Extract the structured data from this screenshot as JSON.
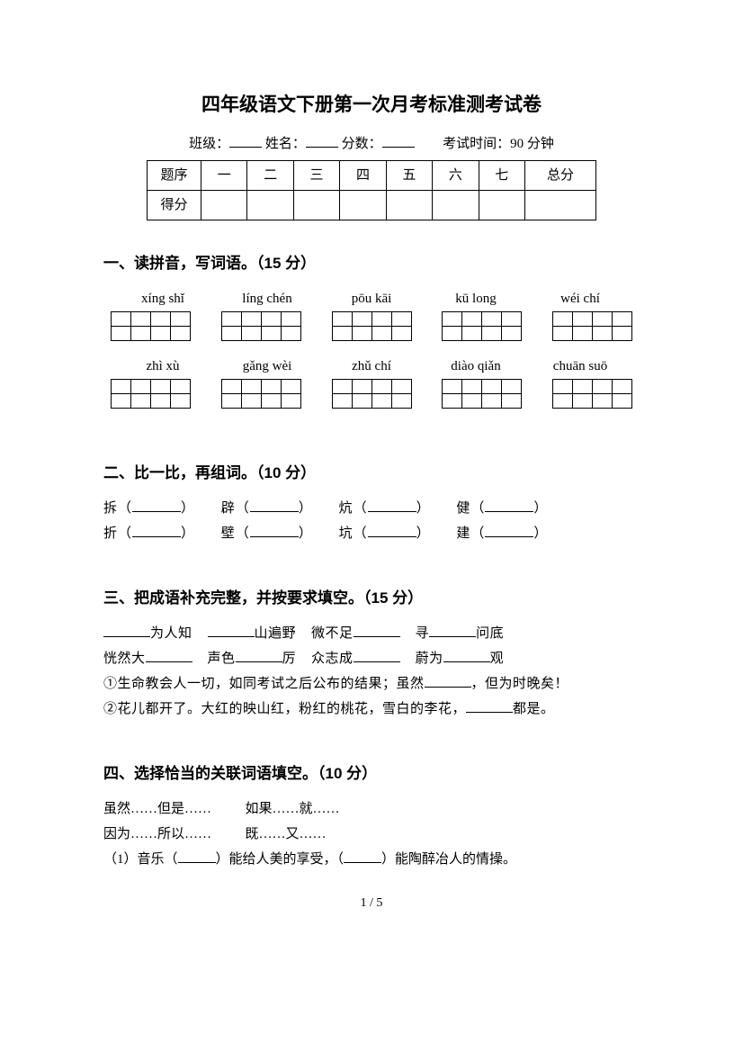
{
  "title": "四年级语文下册第一次月考标准测考试卷",
  "meta": {
    "class_label": "班级：",
    "name_label": "姓名：",
    "score_label": "分数：",
    "time_label": "考试时间：90 分钟"
  },
  "score_table": {
    "header_first": "题序",
    "cols": [
      "一",
      "二",
      "三",
      "四",
      "五",
      "六",
      "七",
      "总分"
    ],
    "row2_first": "得分"
  },
  "sec1": {
    "heading": "一、读拼音，写词语。（15 分）",
    "row1": [
      "xíng shǐ",
      "líng chén",
      "pōu kāi",
      "kū long",
      "wéi chí"
    ],
    "row2": [
      "zhì xù",
      "gǎng wèi",
      "zhǔ chí",
      "diào qiǎn",
      "chuān suō"
    ]
  },
  "sec2": {
    "heading": "二、比一比，再组词。（10 分）",
    "line1": {
      "a": "拆（",
      "b": "辟（",
      "c": "炕（",
      "d": "健（",
      "close": "）"
    },
    "line2": {
      "a": "折（",
      "b": "壁（",
      "c": "坑（",
      "d": "建（",
      "close": "）"
    }
  },
  "sec3": {
    "heading": "三、把成语补充完整，并按要求填空。（15 分）",
    "l1": {
      "a": "为人知",
      "b": "山遍野",
      "c": "微不足",
      "d": "寻",
      "e": "问底"
    },
    "l2": {
      "a": "恍然大",
      "b": "声色",
      "c": "厉",
      "d": "众志成",
      "e": "蔚为",
      "f": "观"
    },
    "l3": "①生命教会人一切，如同考试之后公布的结果；虽然",
    "l3b": "，但为时晚矣！",
    "l4": "②花儿都开了。大红的映山红，粉红的桃花，雪白的李花，",
    "l4b": "都是。"
  },
  "sec4": {
    "heading": "四、选择恰当的关联词语填空。（10 分）",
    "opt1": "虽然……但是……",
    "opt2": "如果……就……",
    "opt3": "因为……所以……",
    "opt4": "既……又……",
    "q1a": "（1）音乐（",
    "q1b": "）能给人美的享受，（",
    "q1c": "）能陶醉冶人的情操。"
  },
  "footer": "1 / 5"
}
